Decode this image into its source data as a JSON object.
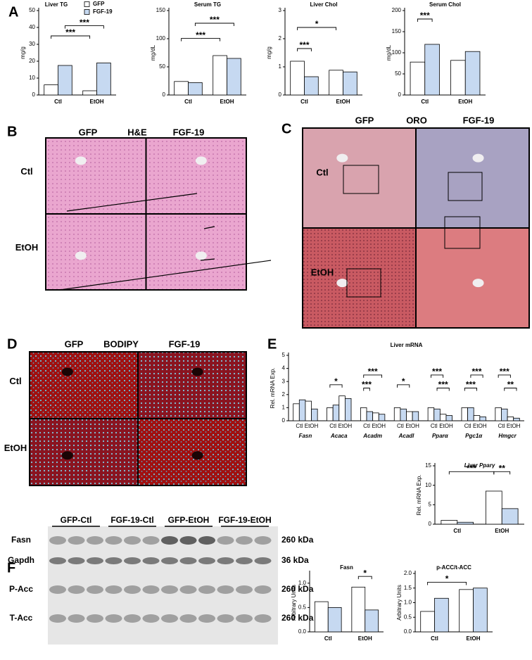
{
  "panel_labels": [
    "A",
    "B",
    "C",
    "D",
    "E",
    "F"
  ],
  "chart_data": [
    {
      "type": "bar",
      "title": "Liver TG",
      "ylabel": "mg/g",
      "categories": [
        "Ctl",
        "EtOH"
      ],
      "series": [
        {
          "name": "GFP",
          "color": "#ffffff",
          "values": [
            6,
            2.5
          ]
        },
        {
          "name": "FGF-19",
          "color": "#c6d9f1",
          "values": [
            17.5,
            19
          ]
        }
      ],
      "ylim": [
        0,
        50
      ],
      "yticks": [
        0,
        10,
        20,
        30,
        40,
        50
      ],
      "annotations": [
        "***",
        "***"
      ]
    },
    {
      "type": "bar",
      "title": "Serum  TG",
      "ylabel": "mg/dL",
      "categories": [
        "Ctl",
        "EtOH"
      ],
      "series": [
        {
          "color": "#ffffff",
          "values": [
            24,
            70
          ]
        },
        {
          "color": "#c6d9f1",
          "values": [
            22,
            65
          ]
        }
      ],
      "ylim": [
        0,
        150
      ],
      "yticks": [
        0,
        50,
        100,
        150
      ],
      "annotations": [
        "***",
        "***"
      ]
    },
    {
      "type": "bar",
      "title": "Liver Chol",
      "ylabel": "mg/g",
      "categories": [
        "Ctl",
        "EtOH"
      ],
      "series": [
        {
          "color": "#ffffff",
          "values": [
            1.2,
            0.88
          ]
        },
        {
          "color": "#c6d9f1",
          "values": [
            0.65,
            0.82
          ]
        }
      ],
      "ylim": [
        0,
        3
      ],
      "yticks": [
        0,
        1,
        2,
        3
      ],
      "annotations": [
        "***",
        "*"
      ]
    },
    {
      "type": "bar",
      "title": "Serum  Chol",
      "ylabel": "mg/dL",
      "categories": [
        "Ctl",
        "EtOH"
      ],
      "series": [
        {
          "color": "#ffffff",
          "values": [
            78,
            82
          ]
        },
        {
          "color": "#c6d9f1",
          "values": [
            120,
            103
          ]
        }
      ],
      "ylim": [
        0,
        200
      ],
      "yticks": [
        0,
        50,
        100,
        150,
        200
      ],
      "annotations": [
        "***"
      ]
    },
    {
      "type": "bar",
      "title": "Liver mRNA",
      "ylabel": "Rel. mRNA Exp.",
      "categories": [
        "Fasn",
        "Acaca",
        "Acadm",
        "Acadl",
        "Pparα",
        "Pgc1α",
        "Hmgcr"
      ],
      "subcategories": [
        "Ctl",
        "EtOH"
      ],
      "series": [
        {
          "color": "#ffffff",
          "values": [
            1.3,
            1.0,
            1.0,
            1.0,
            1.0,
            1.0,
            1.0
          ]
        },
        {
          "color": "#c6d9f1",
          "values": [
            1.6,
            1.2,
            0.7,
            0.9,
            0.9,
            1.0,
            0.9
          ]
        },
        {
          "color": "#ffffff",
          "values": [
            1.5,
            1.9,
            0.6,
            0.7,
            0.5,
            0.4,
            0.3
          ]
        },
        {
          "color": "#c6d9f1",
          "values": [
            0.9,
            1.7,
            0.5,
            0.7,
            0.4,
            0.3,
            0.2
          ]
        }
      ],
      "ylim": [
        0,
        5
      ],
      "yticks": [
        0,
        1,
        2,
        3,
        4,
        5
      ],
      "annotations": [
        "*",
        "***",
        "***",
        "*",
        "***",
        "***",
        "***",
        "***",
        "***",
        "**"
      ]
    },
    {
      "type": "bar",
      "title": "Liver Pparγ",
      "ylabel": "Rel. mRNA Exp.",
      "categories": [
        "Ctl",
        "EtOH"
      ],
      "series": [
        {
          "color": "#ffffff",
          "values": [
            1.0,
            8.5
          ]
        },
        {
          "color": "#c6d9f1",
          "values": [
            0.5,
            4.0
          ]
        }
      ],
      "ylim": [
        0,
        15
      ],
      "yticks": [
        0,
        5,
        10,
        15
      ],
      "annotations": [
        "***",
        "**"
      ]
    },
    {
      "type": "bar",
      "title": "Fasn",
      "ylabel": "Arbitrary Units",
      "categories": [
        "Ctl",
        "EtOH"
      ],
      "series": [
        {
          "color": "#ffffff",
          "values": [
            0.62,
            0.92
          ]
        },
        {
          "color": "#c6d9f1",
          "values": [
            0.5,
            0.45
          ]
        }
      ],
      "ylim": [
        0,
        1.2
      ],
      "yticks": [
        {
          "value": 0,
          "label": "0.0"
        },
        0.5,
        {
          "value": 1,
          "label": "1.0"
        }
      ],
      "annotations": [
        "*"
      ]
    },
    {
      "type": "bar",
      "title": "p-ACC/t-ACC",
      "ylabel": "Arbitrary Units",
      "categories": [
        "Ctl",
        "EtOH"
      ],
      "series": [
        {
          "color": "#ffffff",
          "values": [
            0.7,
            1.45
          ]
        },
        {
          "color": "#c6d9f1",
          "values": [
            1.15,
            1.5
          ]
        }
      ],
      "ylim": [
        0,
        2
      ],
      "yticks": [
        {
          "value": 0,
          "label": "0.0"
        },
        0.5,
        {
          "value": 1,
          "label": "1.0"
        },
        1.5,
        {
          "value": 2,
          "label": "2.0"
        }
      ],
      "annotations": [
        "*"
      ]
    }
  ],
  "image_panels": [
    {
      "left": "GFP",
      "stain": "H&E",
      "right": "FGF-19",
      "rows": [
        "Ctl",
        "EtOH"
      ]
    },
    {
      "left": "GFP",
      "stain": "ORO",
      "right": "FGF-19",
      "rows": [
        "Ctl",
        "EtOH"
      ]
    },
    {
      "left": "GFP",
      "stain": "BODIPY",
      "right": "FGF-19",
      "rows": [
        "Ctl",
        "EtOH"
      ]
    }
  ],
  "blot": {
    "groups": [
      "GFP-Ctl",
      "FGF-19-Ctl",
      "GFP-EtOH",
      "FGF-19-EtOH"
    ],
    "proteins": [
      "Fasn",
      "Gapdh",
      "P-Acc",
      "T-Acc"
    ],
    "sizes": [
      "260 kDa",
      "36 kDa",
      "260 kDa",
      "260 kDa"
    ]
  }
}
